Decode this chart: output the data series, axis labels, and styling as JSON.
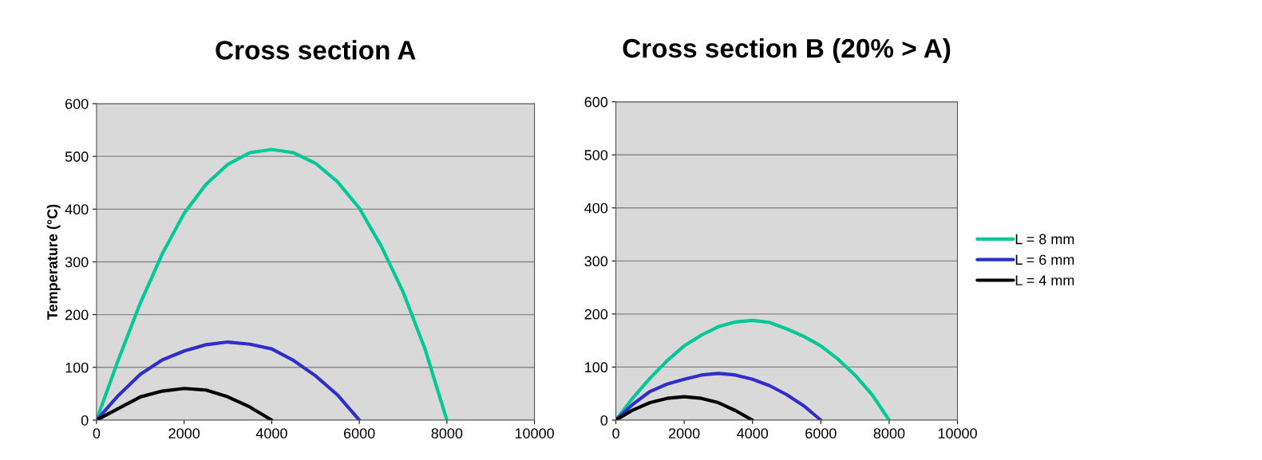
{
  "chart_data": [
    {
      "type": "line",
      "title": "Cross section A",
      "ylabel": "Temperature (°C)",
      "xlim": [
        0,
        10000
      ],
      "xticks": [
        0,
        2000,
        4000,
        6000,
        8000,
        10000
      ],
      "ylim": [
        0,
        600
      ],
      "yticks": [
        0,
        100,
        200,
        300,
        400,
        500,
        600
      ],
      "grid": "y",
      "legend": false,
      "series": [
        {
          "color": "#00c896",
          "x": [
            0,
            500,
            1000,
            1500,
            2000,
            2500,
            3000,
            3500,
            4000,
            4500,
            5000,
            5500,
            6000,
            6500,
            7000,
            7500,
            8000
          ],
          "values": [
            0,
            115,
            222,
            315,
            392,
            447,
            485,
            507,
            513,
            507,
            487,
            452,
            402,
            330,
            243,
            135,
            0
          ]
        },
        {
          "color": "#2e2ecc",
          "x": [
            0,
            500,
            1000,
            1500,
            2000,
            2500,
            3000,
            3500,
            4000,
            4500,
            5000,
            5500,
            6000
          ],
          "values": [
            0,
            47,
            87,
            114,
            131,
            143,
            148,
            144,
            135,
            113,
            84,
            48,
            0
          ]
        },
        {
          "color": "#000000",
          "x": [
            0,
            500,
            1000,
            1500,
            2000,
            2500,
            3000,
            3500,
            4000
          ],
          "values": [
            0,
            22,
            44,
            55,
            60,
            57,
            44,
            25,
            0
          ]
        }
      ]
    },
    {
      "type": "line",
      "title": "Cross section B (20% > A)",
      "xlim": [
        0,
        10000
      ],
      "xticks": [
        0,
        2000,
        4000,
        6000,
        8000,
        10000
      ],
      "ylim": [
        0,
        600
      ],
      "yticks": [
        0,
        100,
        200,
        300,
        400,
        500,
        600
      ],
      "grid": "y",
      "legend": "right",
      "series": [
        {
          "name": "L = 8 mm",
          "color": "#00c896",
          "x": [
            0,
            500,
            1000,
            1500,
            2000,
            2500,
            3000,
            3500,
            4000,
            4500,
            5000,
            5500,
            6000,
            6500,
            7000,
            7500,
            8000
          ],
          "values": [
            0,
            42,
            79,
            112,
            140,
            160,
            176,
            185,
            188,
            184,
            172,
            158,
            140,
            115,
            85,
            48,
            0
          ]
        },
        {
          "name": "L = 6 mm",
          "color": "#2e2ecc",
          "x": [
            0,
            500,
            1000,
            1500,
            2000,
            2500,
            3000,
            3500,
            4000,
            4500,
            5000,
            5500,
            6000
          ],
          "values": [
            0,
            30,
            54,
            68,
            77,
            85,
            88,
            85,
            77,
            65,
            48,
            27,
            0
          ]
        },
        {
          "name": "L = 4 mm",
          "color": "#000000",
          "x": [
            0,
            500,
            1000,
            1500,
            2000,
            2500,
            3000,
            3500,
            4000
          ],
          "values": [
            0,
            19,
            33,
            41,
            44,
            41,
            33,
            18,
            0
          ]
        }
      ]
    }
  ]
}
